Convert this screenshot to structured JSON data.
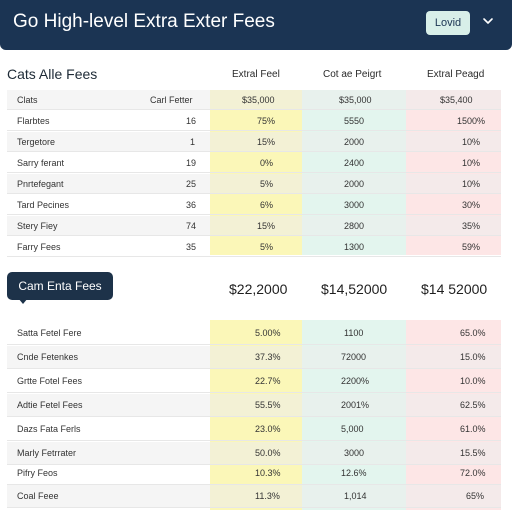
{
  "header": {
    "title": "Go High-level Extra Exter Fees",
    "badge": "Lovid",
    "chevron_icon": "chevron-down-icon"
  },
  "colors": {
    "header_bg": "#1b3453",
    "badge_bg": "#d8efe9",
    "col_yellow": "#fbf7b8",
    "col_green": "#e3f5ee",
    "col_pink": "#fde6e6"
  },
  "section1": {
    "title": "Cats Alle Fees",
    "col_headers": [
      "Extral Feel",
      "Cot ae Peigrt",
      "Extral Peagd"
    ],
    "header_row": [
      "Clats",
      "Carl Fetter",
      "$35,000",
      "$35,000",
      "$35,400"
    ],
    "rows": [
      [
        "Flarbtes",
        "16",
        "75%",
        "5550",
        "1500%"
      ],
      [
        "Tergetore",
        "1",
        "15%",
        "2000",
        "10%"
      ],
      [
        "Sarry ferant",
        "19",
        "0%",
        "2400",
        "10%"
      ],
      [
        "Pnrtefegant",
        "25",
        "5%",
        "2000",
        "10%"
      ],
      [
        "Tard Pecines",
        "36",
        "6%",
        "3000",
        "30%"
      ],
      [
        "Stery Fiey",
        "74",
        "15%",
        "2800",
        "35%"
      ],
      [
        "Farry Fees",
        "35",
        "5%",
        "1300",
        "59%"
      ]
    ]
  },
  "summary_bar": {
    "button_label": "Cam Enta Fees",
    "values": [
      "$22,2000",
      "$14,52000",
      "$14 52000"
    ]
  },
  "section2": {
    "rows": [
      [
        "Satta Fetel Fere",
        "5.00%",
        "1100",
        "65.0%"
      ],
      [
        "Cnde Fetenkes",
        "37.3%",
        "72000",
        "15.0%"
      ],
      [
        "Grtte Fotel Fees",
        "22.7%",
        "2200%",
        "10.0%"
      ],
      [
        "Adtie Fetel Fees",
        "55.5%",
        "2001%",
        "62.5%"
      ],
      [
        "Dazs Fata Ferls",
        "23.0%",
        "5,000",
        "61.0%"
      ],
      [
        "Marly Fetrrater",
        "50.0%",
        "3000",
        "15.5%"
      ],
      [
        "Pifry Feos",
        "10.3%",
        "12.6%",
        "72.0%"
      ],
      [
        "Coal Feee",
        "11.3%",
        "1,014",
        "65%"
      ]
    ]
  }
}
